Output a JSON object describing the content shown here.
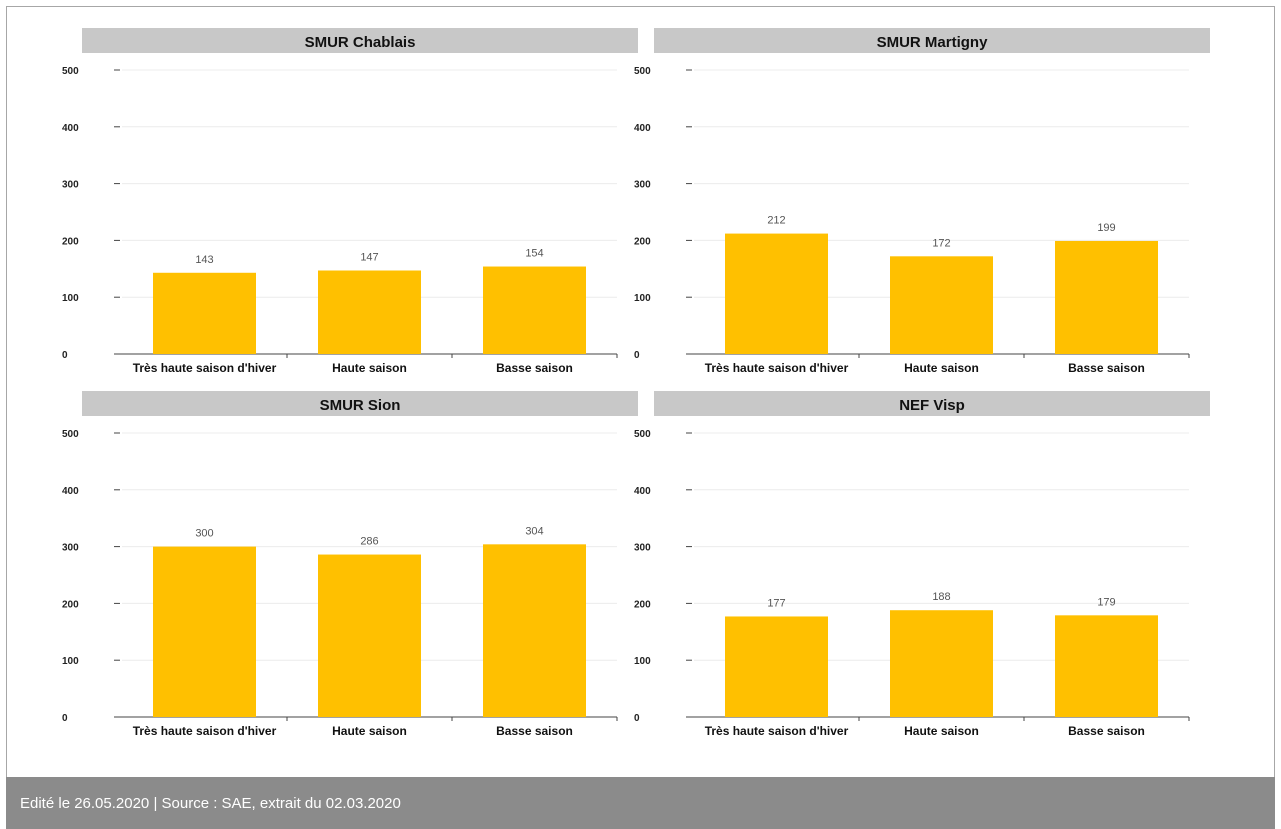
{
  "chart_data": [
    {
      "type": "bar",
      "title": "SMUR Chablais",
      "categories": [
        "Très haute saison d'hiver",
        "Haute saison",
        "Basse saison"
      ],
      "values": [
        143,
        147,
        154
      ],
      "yticks": [
        0,
        100,
        200,
        300,
        400,
        500
      ],
      "ylim": [
        0,
        500
      ],
      "grid": true
    },
    {
      "type": "bar",
      "title": "SMUR Martigny",
      "categories": [
        "Très haute saison d'hiver",
        "Haute saison",
        "Basse saison"
      ],
      "values": [
        212,
        172,
        199
      ],
      "yticks": [
        0,
        100,
        200,
        300,
        400,
        500
      ],
      "ylim": [
        0,
        500
      ],
      "grid": true
    },
    {
      "type": "bar",
      "title": "SMUR Sion",
      "categories": [
        "Très haute saison d'hiver",
        "Haute saison",
        "Basse saison"
      ],
      "values": [
        300,
        286,
        304
      ],
      "yticks": [
        0,
        100,
        200,
        300,
        400,
        500
      ],
      "ylim": [
        0,
        500
      ],
      "grid": true
    },
    {
      "type": "bar",
      "title": "NEF Visp",
      "categories": [
        "Très haute saison d'hiver",
        "Haute saison",
        "Basse saison"
      ],
      "values": [
        177,
        188,
        179
      ],
      "yticks": [
        0,
        100,
        200,
        300,
        400,
        500
      ],
      "ylim": [
        0,
        500
      ],
      "grid": true
    }
  ],
  "colors": {
    "bar": "#ffc000",
    "title_band": "#c8c8c8",
    "footer_bg": "#8b8b8b"
  },
  "footer": {
    "text": "Edité le 26.05.2020 | Source : SAE, extrait du 02.03.2020"
  }
}
